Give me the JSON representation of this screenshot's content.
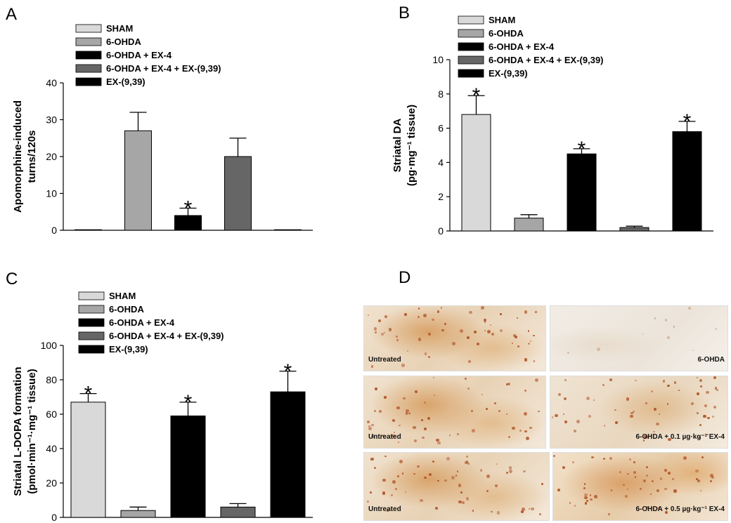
{
  "colors": {
    "sham": "#d9d9d9",
    "ohda": "#a6a6a6",
    "ex4": "#000000",
    "ex4_ex939": "#666666",
    "ex939": "#000000"
  },
  "chart_data": [
    {
      "panel": "A",
      "type": "bar",
      "ylabel_lines": [
        "Apomorphine-induced",
        "turns/120s"
      ],
      "ylim": [
        0,
        40
      ],
      "yticks": [
        0,
        10,
        20,
        30,
        40
      ],
      "legend": [
        "SHAM",
        "6-OHDA",
        "6-OHDA + EX-4",
        "6-OHDA + EX-4 + EX-(9,39)",
        "EX-(9,39)"
      ],
      "categories": [
        "SHAM",
        "6-OHDA",
        "6-OHDA + EX-4",
        "6-OHDA + EX-4 + EX-(9,39)",
        "EX-(9,39)"
      ],
      "values": [
        0,
        27,
        4,
        20,
        0
      ],
      "errors": [
        0,
        5,
        2,
        5,
        0
      ],
      "significant": [
        false,
        false,
        true,
        false,
        false
      ]
    },
    {
      "panel": "B",
      "type": "bar",
      "ylabel_lines": [
        "Striatal DA",
        "(pg·mg⁻¹ tissue)"
      ],
      "ylim": [
        0,
        10
      ],
      "yticks": [
        0,
        2,
        4,
        6,
        8,
        10
      ],
      "legend": [
        "SHAM",
        "6-OHDA",
        "6-OHDA + EX-4",
        "6-OHDA + EX-4 + EX-(9,39)",
        "EX-(9,39)"
      ],
      "categories": [
        "SHAM",
        "6-OHDA",
        "6-OHDA + EX-4",
        "6-OHDA + EX-4 + EX-(9,39)",
        "EX-(9,39)"
      ],
      "values": [
        6.8,
        0.75,
        4.5,
        0.2,
        5.8
      ],
      "errors": [
        1.1,
        0.2,
        0.3,
        0.08,
        0.6
      ],
      "significant": [
        true,
        false,
        true,
        false,
        true
      ]
    },
    {
      "panel": "C",
      "type": "bar",
      "ylabel_lines": [
        "Striatal L-DOPA formation",
        "(pmol·min⁻¹·mg⁻¹ tissue)"
      ],
      "ylim": [
        0,
        100
      ],
      "yticks": [
        0,
        20,
        40,
        60,
        80,
        100
      ],
      "legend": [
        "SHAM",
        "6-OHDA",
        "6-OHDA + EX-4",
        "6-OHDA + EX-4 + EX-(9,39)",
        "EX-(9,39)"
      ],
      "categories": [
        "SHAM",
        "6-OHDA",
        "6-OHDA + EX-4",
        "6-OHDA + EX-4 + EX-(9,39)",
        "EX-(9,39)"
      ],
      "values": [
        67,
        4,
        59,
        6,
        73
      ],
      "errors": [
        5,
        2,
        8,
        2,
        12
      ],
      "significant": [
        true,
        false,
        true,
        false,
        true
      ]
    }
  ],
  "panel_d": {
    "letter": "D",
    "images": [
      {
        "label": "Untreated"
      },
      {
        "label": "6-OHDA"
      },
      {
        "label": "Untreated"
      },
      {
        "label": "6-OHDA + 0.1 µg·kg⁻¹ EX-4"
      },
      {
        "label": "Untreated"
      },
      {
        "label": "6-OHDA + 0.5 µg·kg⁻¹ EX-4"
      }
    ]
  },
  "significance_marker": "*"
}
